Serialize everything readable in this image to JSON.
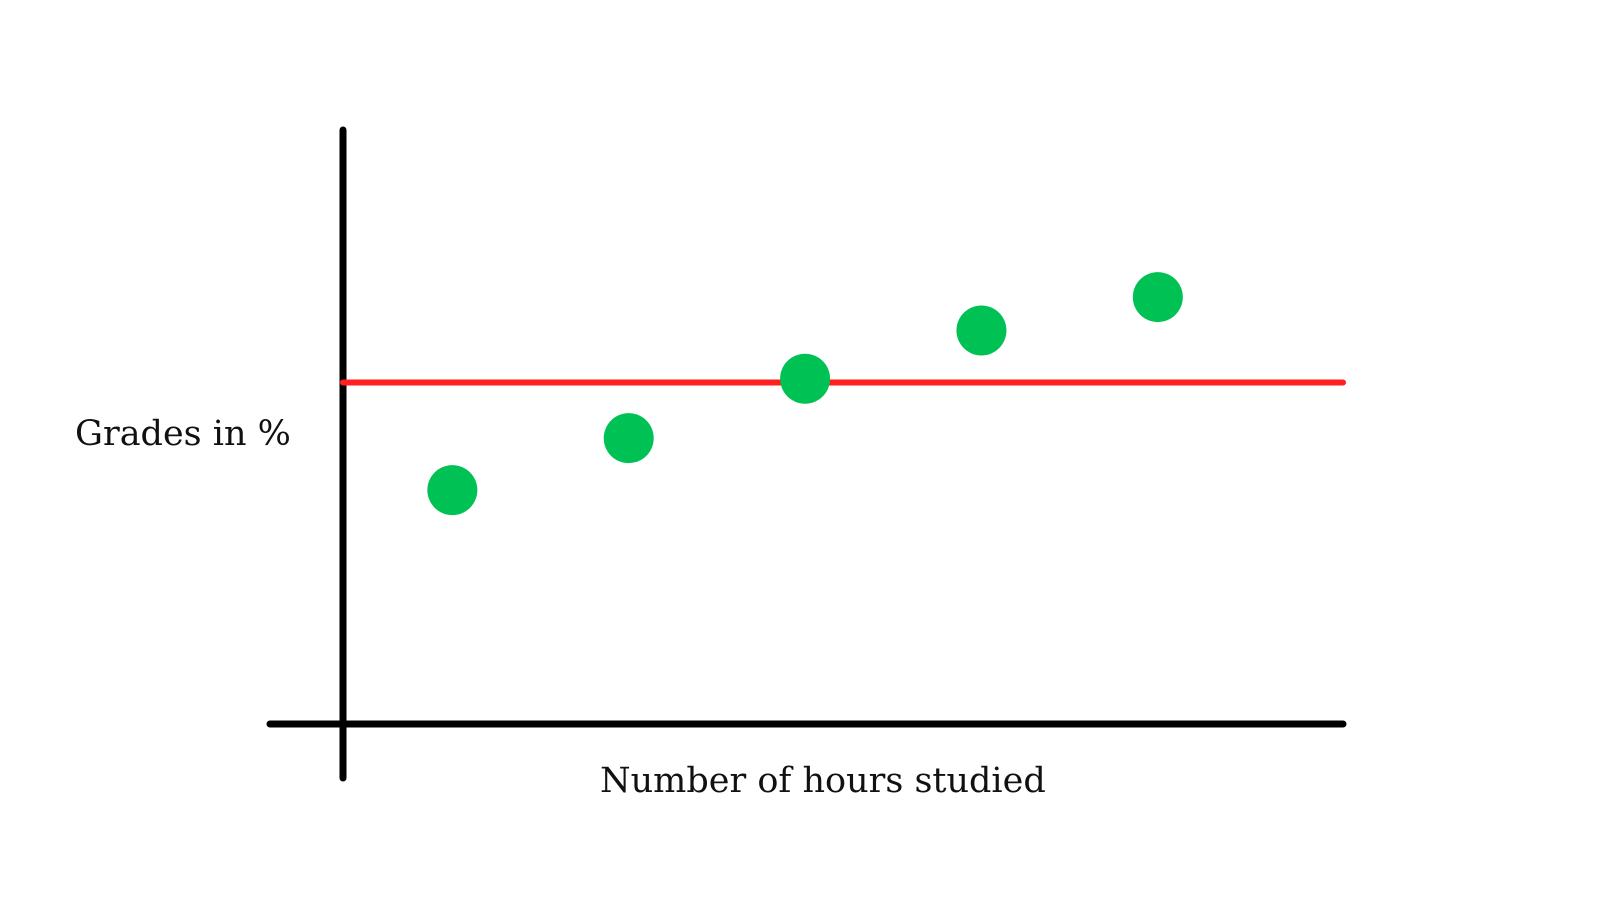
{
  "chart_data": {
    "type": "scatter",
    "xlabel": "Number of hours studied",
    "ylabel": "Grades in %",
    "x": [
      1,
      2,
      3,
      4,
      5
    ],
    "y": [
      43,
      57,
      73,
      86,
      95
    ],
    "reference_line": {
      "y": 72,
      "color": "#ff1f1f"
    },
    "xlim": [
      0.38,
      6.05
    ],
    "ylim": [
      -20,
      140
    ],
    "grid": false,
    "legend": "none",
    "point_color": "#00c254",
    "axis_color": "#000000"
  }
}
